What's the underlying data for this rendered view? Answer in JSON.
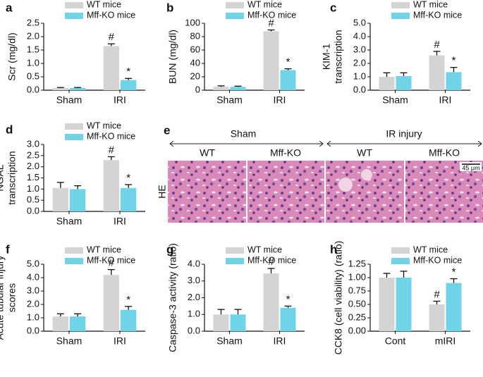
{
  "chart_data": [
    {
      "type": "bar",
      "panel_label": "a",
      "ylabel": [
        "Scr (mg/dl)"
      ],
      "categories": [
        "Sham",
        "IRI"
      ],
      "series": [
        {
          "name": "WT mice",
          "color": "#d4d4d4",
          "values": [
            0.08,
            1.65
          ],
          "errors": [
            0.02,
            0.08
          ],
          "markers": [
            null,
            "#"
          ]
        },
        {
          "name": "Mff-KO mice",
          "color": "#70d4e8",
          "values": [
            0.08,
            0.38
          ],
          "errors": [
            0.02,
            0.06
          ],
          "markers": [
            null,
            "*"
          ]
        }
      ],
      "ylim": [
        0,
        2.5
      ],
      "yticks": [
        {
          "value": 0,
          "label": "0.0"
        },
        0.5,
        {
          "value": 1,
          "label": "1.0"
        },
        1.5,
        {
          "value": 2,
          "label": "2.0"
        },
        2.5
      ]
    },
    {
      "type": "bar",
      "panel_label": "b",
      "ylabel": [
        "BUN (mg/dl)"
      ],
      "categories": [
        "Sham",
        "IRI"
      ],
      "series": [
        {
          "name": "WT mice",
          "color": "#d4d4d4",
          "values": [
            5,
            88
          ],
          "errors": [
            1.5,
            2
          ],
          "markers": [
            null,
            "#"
          ]
        },
        {
          "name": "Mff-KO mice",
          "color": "#70d4e8",
          "values": [
            5,
            30
          ],
          "errors": [
            1,
            2
          ],
          "markers": [
            null,
            "*"
          ]
        }
      ],
      "ylim": [
        0,
        100
      ],
      "yticks": [
        0,
        20,
        40,
        60,
        80,
        100
      ]
    },
    {
      "type": "bar",
      "panel_label": "c",
      "ylabel": [
        "KIM-1",
        "transcription"
      ],
      "categories": [
        "Sham",
        "IRI"
      ],
      "series": [
        {
          "name": "WT mice",
          "color": "#d4d4d4",
          "values": [
            1.0,
            2.6
          ],
          "errors": [
            0.3,
            0.3
          ],
          "markers": [
            null,
            "#"
          ]
        },
        {
          "name": "Mff-KO mice",
          "color": "#70d4e8",
          "values": [
            1.05,
            1.35
          ],
          "errors": [
            0.25,
            0.35
          ],
          "markers": [
            null,
            "*"
          ]
        }
      ],
      "ylim": [
        0,
        5
      ],
      "yticks": [
        {
          "value": 0,
          "label": "0.0"
        },
        {
          "value": 1,
          "label": "1.0"
        },
        {
          "value": 2,
          "label": "2.0"
        },
        {
          "value": 3,
          "label": "3.0"
        },
        {
          "value": 4,
          "label": "4.0"
        },
        {
          "value": 5,
          "label": "5.0"
        }
      ]
    },
    {
      "type": "bar",
      "panel_label": "d",
      "ylabel": [
        "NGAL",
        "transcription"
      ],
      "categories": [
        "Sham",
        "IRI"
      ],
      "series": [
        {
          "name": "WT mice",
          "color": "#d4d4d4",
          "values": [
            1.05,
            2.3
          ],
          "errors": [
            0.25,
            0.15
          ],
          "markers": [
            null,
            "#"
          ]
        },
        {
          "name": "Mff-KO mice",
          "color": "#70d4e8",
          "values": [
            1.0,
            1.05
          ],
          "errors": [
            0.15,
            0.15
          ],
          "markers": [
            null,
            "*"
          ]
        }
      ],
      "ylim": [
        0,
        3
      ],
      "yticks": [
        {
          "value": 0,
          "label": "0.0"
        },
        0.5,
        {
          "value": 1,
          "label": "1.0"
        },
        1.5,
        {
          "value": 2,
          "label": "2.0"
        },
        2.5,
        {
          "value": 3,
          "label": "3.0"
        }
      ]
    },
    {
      "type": "bar",
      "panel_label": "f",
      "ylabel": [
        "Acute tubular injury",
        "scores"
      ],
      "categories": [
        "Sham",
        "IRI"
      ],
      "series": [
        {
          "name": "WT mice",
          "color": "#d4d4d4",
          "values": [
            1.1,
            4.2
          ],
          "errors": [
            0.2,
            0.4
          ],
          "markers": [
            null,
            "#"
          ]
        },
        {
          "name": "Mff-KO mice",
          "color": "#70d4e8",
          "values": [
            1.1,
            1.6
          ],
          "errors": [
            0.2,
            0.25
          ],
          "markers": [
            null,
            "*"
          ]
        }
      ],
      "ylim": [
        0,
        5
      ],
      "yticks": [
        {
          "value": 0,
          "label": "0.0"
        },
        {
          "value": 1,
          "label": "1.0"
        },
        {
          "value": 2,
          "label": "2.0"
        },
        {
          "value": 3,
          "label": "3.0"
        },
        {
          "value": 4,
          "label": "4.0"
        },
        {
          "value": 5,
          "label": "5.0"
        }
      ]
    },
    {
      "type": "bar",
      "panel_label": "g",
      "ylabel": [
        "Caspase-3 activity (ratio)"
      ],
      "categories": [
        "Sham",
        "IRI"
      ],
      "series": [
        {
          "name": "WT mice",
          "color": "#d4d4d4",
          "values": [
            1.0,
            3.45
          ],
          "errors": [
            0.3,
            0.3
          ],
          "markers": [
            null,
            "#"
          ]
        },
        {
          "name": "Mff-KO mice",
          "color": "#70d4e8",
          "values": [
            1.0,
            1.4
          ],
          "errors": [
            0.3,
            0.1
          ],
          "markers": [
            null,
            "*"
          ]
        }
      ],
      "ylim": [
        0,
        4
      ],
      "yticks": [
        {
          "value": 0,
          "label": "0.0"
        },
        {
          "value": 1,
          "label": "1.0"
        },
        {
          "value": 2,
          "label": "2.0"
        },
        {
          "value": 3,
          "label": "3.0"
        },
        {
          "value": 4,
          "label": "4.0"
        }
      ]
    },
    {
      "type": "bar",
      "panel_label": "h",
      "ylabel": [
        "CCK8 (cell viability) (ratio)"
      ],
      "categories": [
        "Cont",
        "mIRI"
      ],
      "series": [
        {
          "name": "WT mice",
          "color": "#d4d4d4",
          "values": [
            1.0,
            0.5
          ],
          "errors": [
            0.08,
            0.06
          ],
          "markers": [
            null,
            "#"
          ]
        },
        {
          "name": "Mff-KO mice",
          "color": "#70d4e8",
          "values": [
            1.0,
            0.9
          ],
          "errors": [
            0.12,
            0.08
          ],
          "markers": [
            null,
            "*"
          ]
        }
      ],
      "ylim": [
        0,
        1.25
      ],
      "yticks": [
        {
          "value": 0,
          "label": "0.00"
        },
        0.25,
        {
          "value": 0.5,
          "label": "0.50"
        },
        0.75,
        {
          "value": 1,
          "label": "1.00"
        },
        1.25
      ]
    }
  ],
  "image_panel": {
    "panel_label": "e",
    "groups": [
      "Sham",
      "IR injury"
    ],
    "columns": [
      "WT",
      "Mff-KO",
      "WT",
      "Mff-KO"
    ],
    "row_label": "HE",
    "scale_bar": "45 μm"
  }
}
